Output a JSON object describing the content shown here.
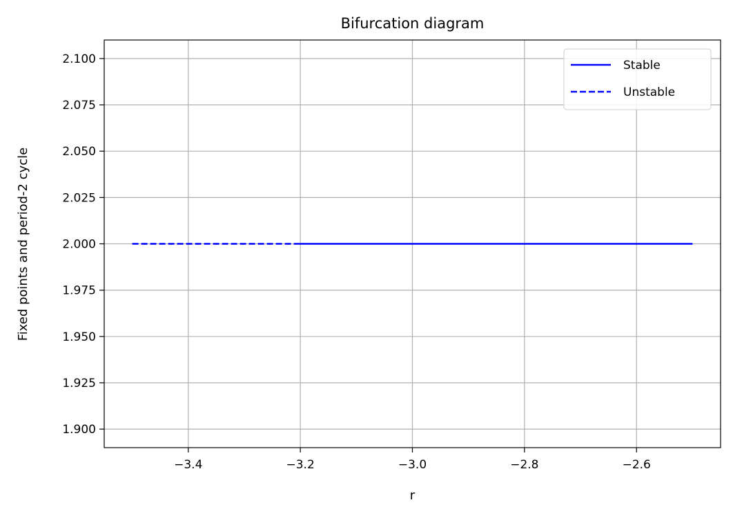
{
  "chart_data": {
    "type": "line",
    "title": "Bifurcation diagram",
    "xlabel": "r",
    "ylabel": "Fixed points and period-2 cycle",
    "xlim": [
      -3.55,
      -2.45
    ],
    "ylim": [
      1.89,
      2.11
    ],
    "xticks": [
      -3.4,
      -3.2,
      -3.0,
      -2.8,
      -2.6
    ],
    "xtick_labels": [
      "−3.4",
      "−3.2",
      "−3.0",
      "−2.8",
      "−2.6"
    ],
    "yticks": [
      1.9,
      1.925,
      1.95,
      1.975,
      2.0,
      2.025,
      2.05,
      2.075,
      2.1
    ],
    "ytick_labels": [
      "1.900",
      "1.925",
      "1.950",
      "1.975",
      "2.000",
      "2.025",
      "2.050",
      "2.075",
      "2.100"
    ],
    "grid": true,
    "legend_position": "top-right",
    "series": [
      {
        "name": "Stable",
        "style": "solid",
        "color": "#0000ff",
        "x": [
          -3.21,
          -2.5
        ],
        "y": [
          2.0,
          2.0
        ]
      },
      {
        "name": "Unstable",
        "style": "dashed",
        "color": "#0000ff",
        "x": [
          -3.5,
          -3.21
        ],
        "y": [
          2.0,
          2.0
        ]
      }
    ]
  }
}
